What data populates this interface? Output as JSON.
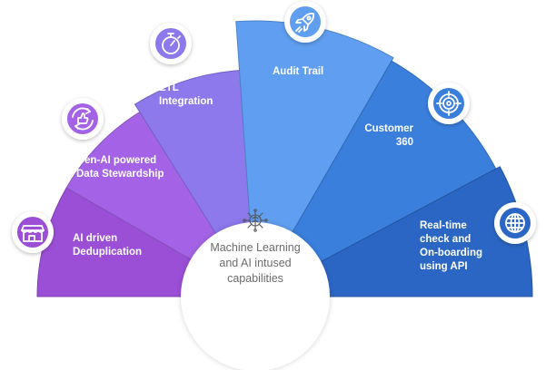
{
  "hub": {
    "icon": "brain-circuit-icon",
    "lines": [
      "Machine Learning",
      "and AI intused",
      "capabilities"
    ],
    "color": "#6b6b6b"
  },
  "segments": [
    {
      "id": "ai-driven-deduplication",
      "icon": "storefront-icon",
      "lines": [
        "AI driven",
        "Deduplication"
      ],
      "color": "#9a4fd6"
    },
    {
      "id": "gen-ai-data-stewardship",
      "icon": "thumbs-up-cycle-icon",
      "lines": [
        "Gen-AI powered",
        "Data Stewardship"
      ],
      "color": "#a463e6"
    },
    {
      "id": "etl-integration",
      "icon": "stopwatch-icon",
      "lines": [
        "ETL",
        "Integration"
      ],
      "color": "#8d78ec"
    },
    {
      "id": "audit-trail",
      "icon": "rocket-icon",
      "lines": [
        "Audit Trail"
      ],
      "color": "#5f9ef0"
    },
    {
      "id": "customer-360",
      "icon": "target-icon",
      "lines": [
        "Customer",
        "360"
      ],
      "color": "#3a7fdc"
    },
    {
      "id": "real-time-onboarding",
      "icon": "globe-network-icon",
      "lines": [
        "Real-time",
        "check and",
        "On-boarding",
        "using API"
      ],
      "color": "#2b66c4"
    }
  ]
}
